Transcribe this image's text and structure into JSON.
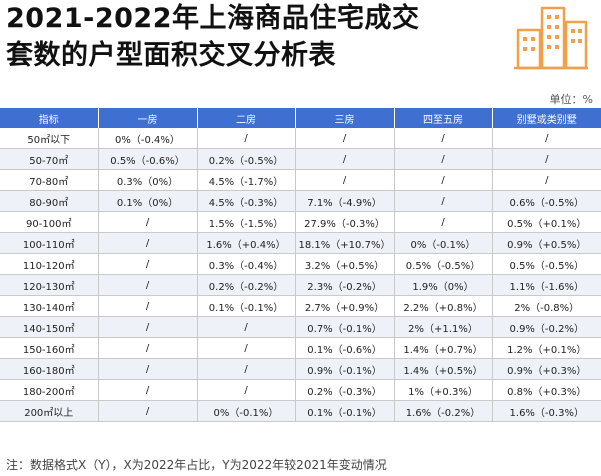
{
  "title_line1": "2021-2022年上海商品住宅成交",
  "title_line2": "套数的户型面积交叉分析表",
  "unit_label": "单位：%",
  "table": {
    "headers": [
      "指标",
      "一房",
      "二房",
      "三房",
      "四至五房",
      "别墅或类别墅"
    ],
    "rows": [
      [
        "50㎡以下",
        "0%（-0.4%）",
        "/",
        "/",
        "/",
        "/"
      ],
      [
        "50-70㎡",
        "0.5%（-0.6%）",
        "0.2%（-0.5%）",
        "/",
        "/",
        "/"
      ],
      [
        "70-80㎡",
        "0.3%（0%）",
        "4.5%（-1.7%）",
        "/",
        "/",
        "/"
      ],
      [
        "80-90㎡",
        "0.1%（0%）",
        "4.5%（-0.3%）",
        "7.1%（-4.9%）",
        "/",
        "0.6%（-0.5%）"
      ],
      [
        "90-100㎡",
        "/",
        "1.5%（-1.5%）",
        "27.9%（-0.3%）",
        "/",
        "0.5%（+0.1%）"
      ],
      [
        "100-110㎡",
        "/",
        "1.6%（+0.4%）",
        "18.1%（+10.7%）",
        "0%（-0.1%）",
        "0.9%（+0.5%）"
      ],
      [
        "110-120㎡",
        "/",
        "0.3%（-0.4%）",
        "3.2%（+0.5%）",
        "0.5%（-0.5%）",
        "0.5%（-0.5%）"
      ],
      [
        "120-130㎡",
        "/",
        "0.2%（-0.2%）",
        "2.3%（-0.2%）",
        "1.9%（0%）",
        "1.1%（-1.6%）"
      ],
      [
        "130-140㎡",
        "/",
        "0.1%（-0.1%）",
        "2.7%（+0.9%）",
        "2.2%（+0.8%）",
        "2%（-0.8%）"
      ],
      [
        "140-150㎡",
        "/",
        "/",
        "0.7%（-0.1%）",
        "2%（+1.1%）",
        "0.9%（-0.2%）"
      ],
      [
        "150-160㎡",
        "/",
        "/",
        "0.1%（-0.6%）",
        "1.4%（+0.7%）",
        "1.2%（+0.1%）"
      ],
      [
        "160-180㎡",
        "/",
        "/",
        "0.9%（-0.1%）",
        "1.4%（+0.5%）",
        "0.9%（+0.3%）"
      ],
      [
        "180-200㎡",
        "/",
        "/",
        "0.2%（-0.3%）",
        "1%（+0.3%）",
        "0.8%（+0.3%）"
      ],
      [
        "200㎡以上",
        "/",
        "0%（-0.1%）",
        "0.1%（-0.1%）",
        "1.6%（-0.2%）",
        "1.6%（-0.3%）"
      ]
    ]
  },
  "footnote": "注：数据格式X（Y），X为2022年占比，Y为2022年较2021年变动情况",
  "colors": {
    "header_bg": "#3f6fd0",
    "logo_accent": "#f0a04b"
  },
  "logo_icon": "buildings-icon"
}
